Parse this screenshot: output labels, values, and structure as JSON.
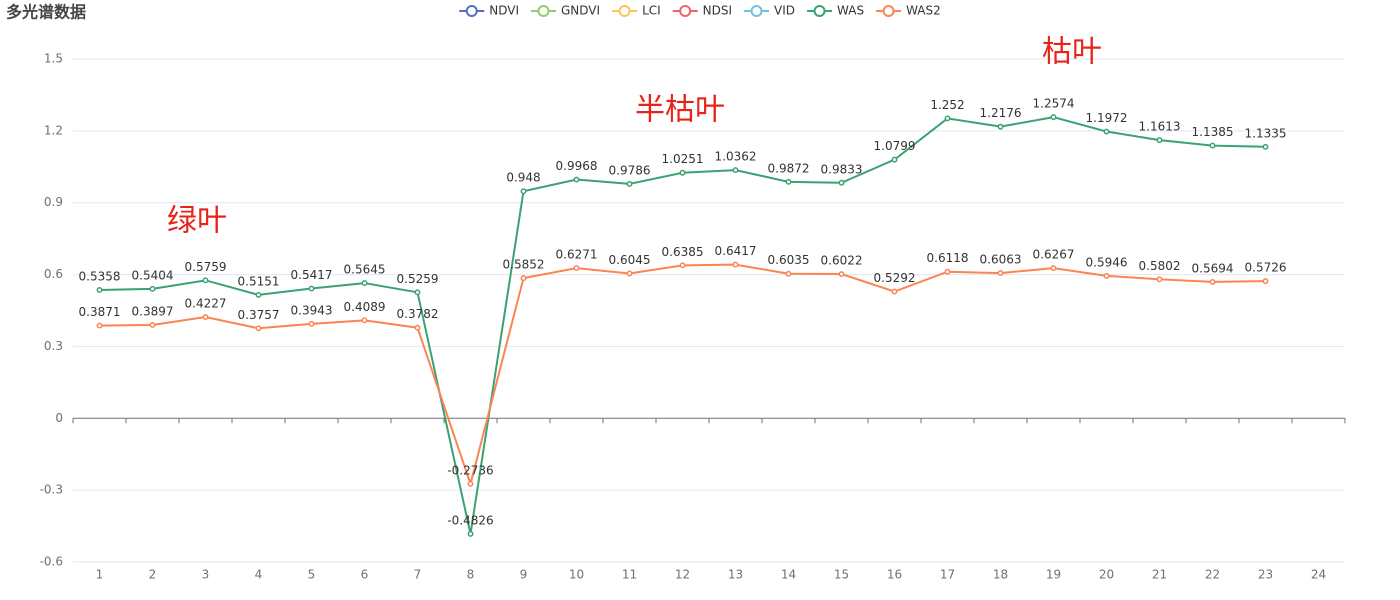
{
  "chart_data": {
    "type": "line",
    "title": "多光谱数据",
    "categories": [
      "1",
      "2",
      "3",
      "4",
      "5",
      "6",
      "7",
      "8",
      "9",
      "10",
      "11",
      "12",
      "13",
      "14",
      "15",
      "16",
      "17",
      "18",
      "19",
      "20",
      "21",
      "22",
      "23",
      "24"
    ],
    "series": [
      {
        "name": "NDVI",
        "color": "#5470c6",
        "values": [
          null,
          null,
          null,
          null,
          null,
          null,
          null,
          null,
          null,
          null,
          null,
          null,
          null,
          null,
          null,
          null,
          null,
          null,
          null,
          null,
          null,
          null,
          null,
          null
        ]
      },
      {
        "name": "GNDVI",
        "color": "#91cc75",
        "values": [
          null,
          null,
          null,
          null,
          null,
          null,
          null,
          null,
          null,
          null,
          null,
          null,
          null,
          null,
          null,
          null,
          null,
          null,
          null,
          null,
          null,
          null,
          null,
          null
        ]
      },
      {
        "name": "LCI",
        "color": "#fac858",
        "values": [
          null,
          null,
          null,
          null,
          null,
          null,
          null,
          null,
          null,
          null,
          null,
          null,
          null,
          null,
          null,
          null,
          null,
          null,
          null,
          null,
          null,
          null,
          null,
          null
        ]
      },
      {
        "name": "NDSI",
        "color": "#ee6666",
        "values": [
          null,
          null,
          null,
          null,
          null,
          null,
          null,
          null,
          null,
          null,
          null,
          null,
          null,
          null,
          null,
          null,
          null,
          null,
          null,
          null,
          null,
          null,
          null,
          null
        ]
      },
      {
        "name": "VID",
        "color": "#73c0de",
        "values": [
          null,
          null,
          null,
          null,
          null,
          null,
          null,
          null,
          null,
          null,
          null,
          null,
          null,
          null,
          null,
          null,
          null,
          null,
          null,
          null,
          null,
          null,
          null,
          null
        ]
      },
      {
        "name": "WAS",
        "color": "#3ba272",
        "values": [
          0.5358,
          0.5404,
          0.5759,
          0.5151,
          0.5417,
          0.5645,
          0.5259,
          -0.4826,
          0.948,
          0.9968,
          0.9786,
          1.0251,
          1.0362,
          0.9872,
          0.9833,
          1.0799,
          1.252,
          1.2176,
          1.2574,
          1.1972,
          1.1613,
          1.1385,
          1.1335,
          null
        ]
      },
      {
        "name": "WAS2",
        "color": "#fc8452",
        "values": [
          0.3871,
          0.3897,
          0.4227,
          0.3757,
          0.3943,
          0.4089,
          0.3782,
          -0.2736,
          0.5852,
          0.6271,
          0.6045,
          0.6385,
          0.6417,
          0.6035,
          0.6022,
          0.5292,
          0.6118,
          0.6063,
          0.6267,
          0.5946,
          0.5802,
          0.5694,
          0.5726,
          null
        ]
      }
    ],
    "ylim": [
      -0.6,
      1.5
    ],
    "yticks": [
      -0.6,
      -0.3,
      0,
      0.3,
      0.6,
      0.9,
      1.2,
      1.5
    ],
    "grid": true,
    "legend": "top",
    "annotations": [
      "绿叶",
      "半枯叶",
      "枯叶"
    ]
  }
}
